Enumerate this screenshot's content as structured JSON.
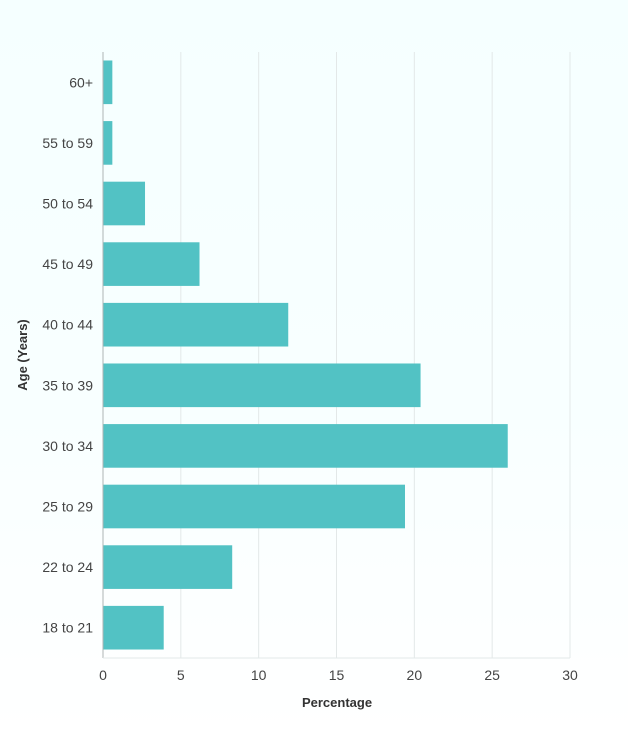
{
  "colors": {
    "bar": "#52c2c4",
    "grid": "#e3e8e8",
    "axis": "#aeb4b4"
  },
  "chart_data": {
    "type": "bar",
    "orientation": "horizontal",
    "title": "",
    "xlabel": "Percentage",
    "ylabel": "Age (Years)",
    "xlim": [
      0,
      30
    ],
    "x_ticks": [
      0,
      5,
      10,
      15,
      20,
      25,
      30
    ],
    "grid": true,
    "legend": "none",
    "categories": [
      "60+",
      "55 to 59",
      "50 to 54",
      "45 to 49",
      "40 to 44",
      "35 to 39",
      "30 to 34",
      "25 to 29",
      "22 to 24",
      "18 to 21"
    ],
    "values": [
      0.6,
      0.6,
      2.7,
      6.2,
      11.9,
      20.4,
      26.0,
      19.4,
      8.3,
      3.9
    ]
  }
}
